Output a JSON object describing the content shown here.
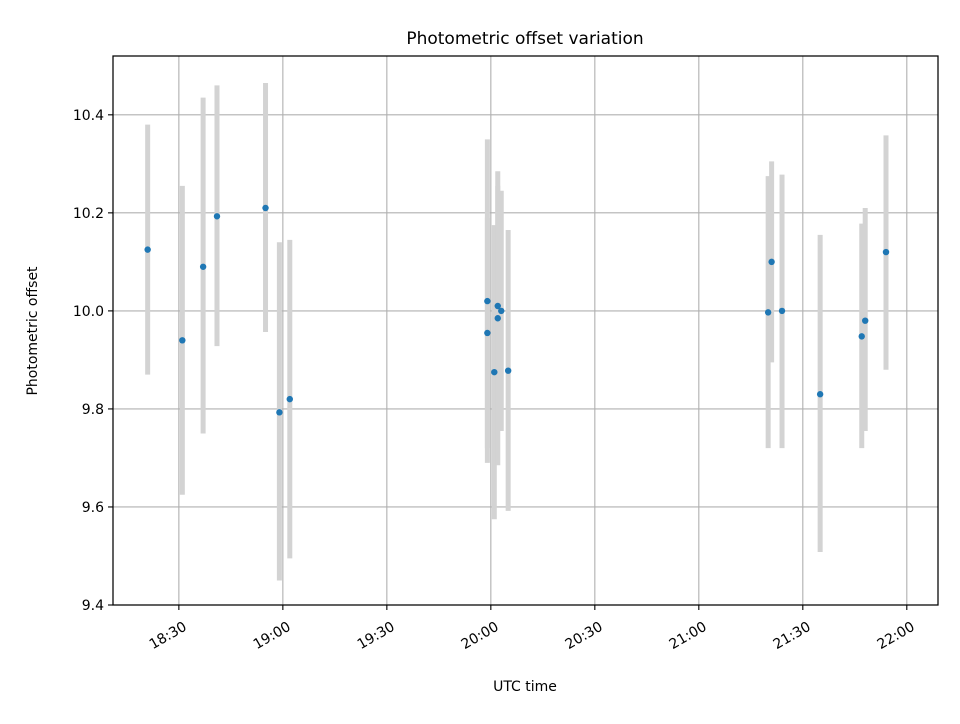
{
  "chart_data": {
    "type": "scatter",
    "title": "Photometric offset variation",
    "xlabel": "UTC time",
    "ylabel": "Photometric offset",
    "xlim": [
      "18:11",
      "22:09"
    ],
    "ylim": [
      9.4,
      10.52
    ],
    "grid": true,
    "x_ticks": [
      "18:30",
      "19:00",
      "19:30",
      "20:00",
      "20:30",
      "21:00",
      "21:30",
      "22:00"
    ],
    "y_ticks": [
      "9.4",
      "9.6",
      "9.8",
      "10.0",
      "10.2",
      "10.4"
    ],
    "colors": {
      "point": "#1f77b4",
      "errorbar": "#d3d3d3",
      "grid": "#b0b0b0"
    },
    "points": [
      {
        "x": "18:21",
        "y": 10.125,
        "low": 9.87,
        "high": 10.38
      },
      {
        "x": "18:31",
        "y": 9.94,
        "low": 9.625,
        "high": 10.255
      },
      {
        "x": "18:37",
        "y": 10.09,
        "low": 9.75,
        "high": 10.435
      },
      {
        "x": "18:41",
        "y": 10.193,
        "low": 9.928,
        "high": 10.46
      },
      {
        "x": "18:55",
        "y": 10.21,
        "low": 9.957,
        "high": 10.465
      },
      {
        "x": "18:59",
        "y": 9.793,
        "low": 9.45,
        "high": 10.14
      },
      {
        "x": "19:02",
        "y": 9.82,
        "low": 9.495,
        "high": 10.145
      },
      {
        "x": "19:59",
        "y": 10.02,
        "low": 9.69,
        "high": 10.35
      },
      {
        "x": "19:59",
        "y": 9.955,
        "low": 9.72,
        "high": 10.19
      },
      {
        "x": "20:01",
        "y": 9.875,
        "low": 9.575,
        "high": 10.175
      },
      {
        "x": "20:02",
        "y": 9.985,
        "low": 9.685,
        "high": 10.285
      },
      {
        "x": "20:02",
        "y": 10.01,
        "low": 9.76,
        "high": 10.255
      },
      {
        "x": "20:03",
        "y": 10.0,
        "low": 9.755,
        "high": 10.245
      },
      {
        "x": "20:05",
        "y": 9.878,
        "low": 9.592,
        "high": 10.165
      },
      {
        "x": "21:20",
        "y": 9.997,
        "low": 9.72,
        "high": 10.275
      },
      {
        "x": "21:21",
        "y": 10.1,
        "low": 9.895,
        "high": 10.305
      },
      {
        "x": "21:24",
        "y": 10.0,
        "low": 9.72,
        "high": 10.278
      },
      {
        "x": "21:35",
        "y": 9.83,
        "low": 9.508,
        "high": 10.155
      },
      {
        "x": "21:47",
        "y": 9.948,
        "low": 9.72,
        "high": 10.178
      },
      {
        "x": "21:48",
        "y": 9.98,
        "low": 9.755,
        "high": 10.21
      },
      {
        "x": "21:54",
        "y": 10.12,
        "low": 9.88,
        "high": 10.358
      }
    ]
  }
}
